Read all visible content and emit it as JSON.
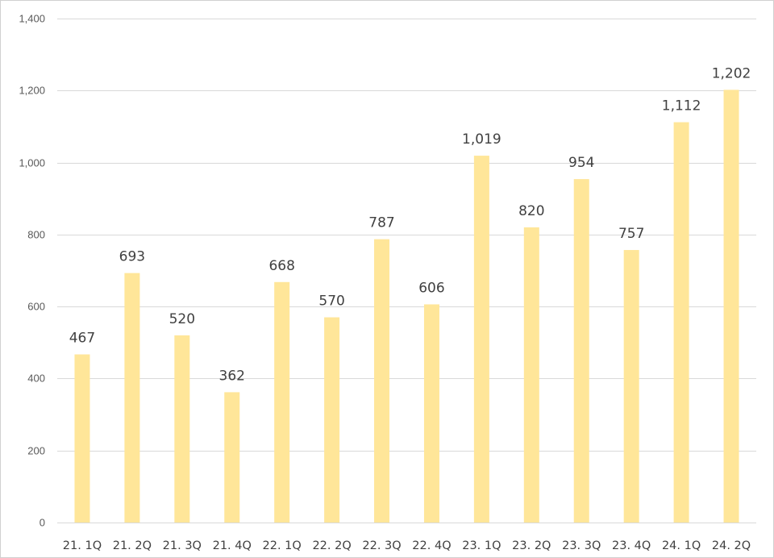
{
  "chart_data": {
    "type": "bar",
    "title": "",
    "xlabel": "",
    "ylabel": "",
    "categories": [
      "21. 1Q",
      "21. 2Q",
      "21. 3Q",
      "21. 4Q",
      "22. 1Q",
      "22. 2Q",
      "22. 3Q",
      "22. 4Q",
      "23. 1Q",
      "23. 2Q",
      "23. 3Q",
      "23. 4Q",
      "24. 1Q",
      "24. 2Q"
    ],
    "values": [
      467,
      693,
      520,
      362,
      668,
      570,
      787,
      606,
      1019,
      820,
      954,
      757,
      1112,
      1202
    ],
    "value_labels": [
      "467",
      "693",
      "520",
      "362",
      "668",
      "570",
      "787",
      "606",
      "1,019",
      "820",
      "954",
      "757",
      "1,112",
      "1,202"
    ],
    "ylim": [
      0,
      1400
    ],
    "y_ticks": [
      0,
      200,
      400,
      600,
      800,
      1000,
      1200,
      1400
    ],
    "y_tick_labels": [
      "0",
      "200",
      "400",
      "600",
      "800",
      "1,000",
      "1,200",
      "1,400"
    ],
    "grid": true,
    "legend": "none",
    "colors": {
      "bar": "#FFE699",
      "grid": "#D9D9D9",
      "text": "#404040"
    }
  }
}
